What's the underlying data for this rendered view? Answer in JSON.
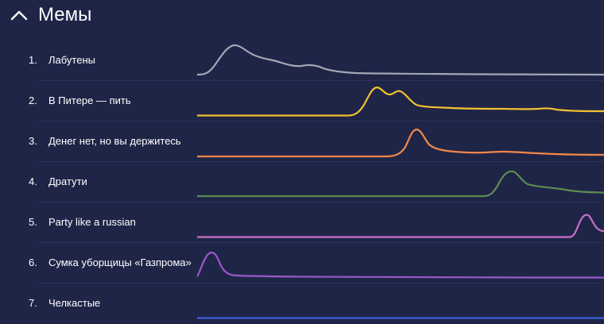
{
  "section": {
    "title": "Мемы",
    "collapse_icon": "chevron-up-icon"
  },
  "memes": [
    {
      "rank": "1.",
      "name": "Лабутены",
      "color": "#a3a6b4"
    },
    {
      "rank": "2.",
      "name": "В Питере — пить",
      "color": "#f2c12e"
    },
    {
      "rank": "3.",
      "name": "Денег нет, но вы держитесь",
      "color": "#f0874a"
    },
    {
      "rank": "4.",
      "name": "Дратути",
      "color": "#5e8c52"
    },
    {
      "rank": "5.",
      "name": "Party like a russian",
      "color": "#c76fc8"
    },
    {
      "rank": "6.",
      "name": "Сумка уборщицы «Газпрома»",
      "color": "#9a57c9"
    },
    {
      "rank": "7.",
      "name": "Челкастые",
      "color": "#3b62d8"
    }
  ]
}
